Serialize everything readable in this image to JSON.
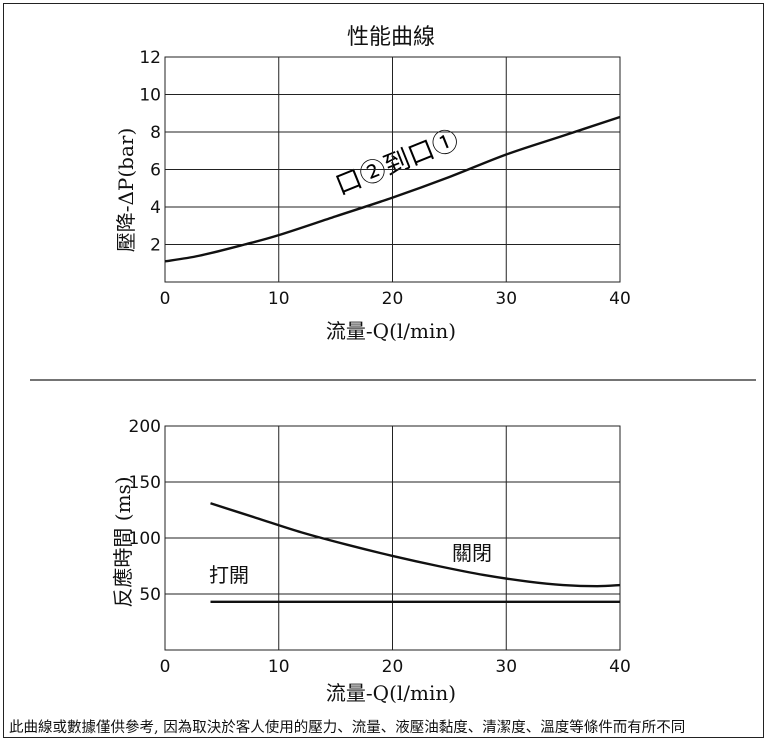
{
  "chart_data": [
    {
      "type": "line",
      "title": "性能曲線",
      "xlabel": "流量-Q(l/min)",
      "ylabel": "壓降-ΔP(bar)",
      "xlim": [
        0,
        40
      ],
      "ylim": [
        0,
        12
      ],
      "xticks": [
        "0",
        "10",
        "20",
        "30",
        "40"
      ],
      "yticks": [
        "2",
        "4",
        "6",
        "8",
        "10",
        "12"
      ],
      "grid": true,
      "annotations": [
        "口②到口①"
      ],
      "series": [
        {
          "x": [
            0,
            3,
            7,
            10,
            15,
            20,
            25,
            30,
            35,
            40
          ],
          "y": [
            1.1,
            1.4,
            2.0,
            2.5,
            3.5,
            4.5,
            5.6,
            6.8,
            7.8,
            8.8
          ]
        }
      ]
    },
    {
      "type": "line",
      "title": "",
      "xlabel": "流量-Q(l/min)",
      "ylabel": "反應時間 (ms)",
      "xlim": [
        0,
        40
      ],
      "ylim": [
        0,
        200
      ],
      "xticks": [
        "0",
        "10",
        "20",
        "30",
        "40"
      ],
      "yticks": [
        "50",
        "100",
        "150",
        "200"
      ],
      "grid": true,
      "series": [
        {
          "name": "關閉",
          "x": [
            4,
            8,
            12,
            16,
            20,
            24,
            28,
            32,
            35,
            38,
            40
          ],
          "y": [
            131,
            118,
            105,
            94,
            84,
            75,
            67,
            61,
            58,
            57,
            58
          ]
        },
        {
          "name": "打開",
          "x": [
            4,
            40
          ],
          "y": [
            43,
            43
          ]
        }
      ]
    }
  ],
  "footnote": "此曲線或數據僅供參考, 因為取決於客人使用的壓力、流量、液壓油黏度、清潔度、溫度等條件而有所不同"
}
